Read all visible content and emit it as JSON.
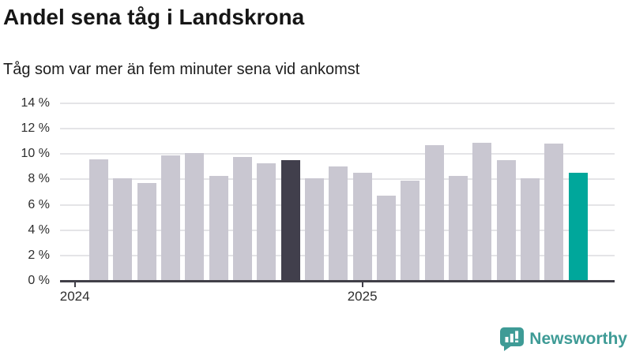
{
  "header": {
    "title": "Andel sena tåg i Landskrona",
    "subtitle": "Tåg som var mer än fem minuter sena vid ankomst"
  },
  "chart_data": {
    "type": "bar",
    "title": "Andel sena tåg i Landskrona",
    "subtitle": "Tåg som var mer än fem minuter sena vid ankomst",
    "unit": "%",
    "ylim": [
      0,
      14
    ],
    "y_ticks": [
      0,
      2,
      4,
      6,
      8,
      10,
      12,
      14
    ],
    "y_tick_suffix": " %",
    "x_ticks": [
      {
        "label": "2024",
        "slot": -1
      },
      {
        "label": "2025",
        "slot": 11
      }
    ],
    "n_bars": 21,
    "values": [
      9.6,
      8.1,
      7.7,
      9.9,
      10.1,
      8.3,
      9.8,
      9.3,
      9.5,
      8.1,
      9.0,
      8.5,
      6.7,
      7.9,
      10.7,
      8.3,
      10.9,
      9.5,
      8.1,
      10.8,
      8.5
    ],
    "highlight_previous_year_index": 8,
    "highlight_current_index": 20,
    "grid": true,
    "legend_position": "none"
  },
  "colors": {
    "bar_default": "#c9c7d1",
    "bar_previous_year": "#413f4c",
    "bar_current": "#00a79b",
    "gridline": "#e4e4e7",
    "axis": "#413f48",
    "text": "#161616",
    "logo": "#3e9b96"
  },
  "branding": {
    "name": "Newsworthy",
    "logo_icon": "newsworthy-speech-bubble-bar-chart-icon"
  }
}
